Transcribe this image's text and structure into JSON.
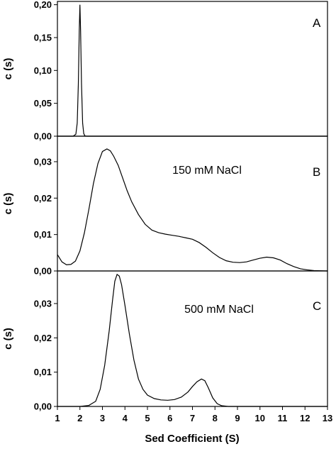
{
  "chart_data": {
    "type": "line",
    "xlabel": "Sed Coefficient (S)",
    "xlim": [
      1,
      13
    ],
    "x_ticks": [
      "1",
      "2",
      "3",
      "4",
      "5",
      "6",
      "7",
      "8",
      "9",
      "10",
      "11",
      "12",
      "13"
    ],
    "panels": [
      {
        "letter": "A",
        "annotation": "",
        "ylabel": "c (s)",
        "ylim": [
          0,
          0.205
        ],
        "y_ticks": [
          "0,00",
          "0,05",
          "0,10",
          "0,15",
          "0,20"
        ],
        "y_values": [
          0,
          0.05,
          0.1,
          0.15,
          0.2
        ],
        "series": [
          {
            "x": [
              1.0,
              1.7,
              1.82,
              1.88,
              1.93,
              1.97,
              2.0,
              2.03,
              2.07,
              2.12,
              2.17,
              2.22,
              2.3,
              13.0
            ],
            "y": [
              0,
              0,
              0.003,
              0.02,
              0.08,
              0.16,
              0.2,
              0.16,
              0.08,
              0.02,
              0.004,
              0.0005,
              0,
              0
            ]
          }
        ]
      },
      {
        "letter": "B",
        "annotation": "150 mM NaCl",
        "ylabel": "c (s)",
        "ylim": [
          0,
          0.037
        ],
        "y_ticks": [
          "0,00",
          "0,01",
          "0,02",
          "0,03"
        ],
        "y_values": [
          0,
          0.01,
          0.02,
          0.03
        ],
        "series": [
          {
            "x": [
              1.0,
              1.2,
              1.4,
              1.6,
              1.8,
              2.0,
              2.2,
              2.4,
              2.6,
              2.8,
              3.0,
              3.2,
              3.35,
              3.5,
              3.7,
              3.9,
              4.1,
              4.3,
              4.6,
              4.9,
              5.2,
              5.5,
              5.8,
              6.1,
              6.4,
              6.7,
              7.0,
              7.3,
              7.6,
              7.9,
              8.2,
              8.5,
              8.8,
              9.1,
              9.4,
              9.7,
              10.0,
              10.3,
              10.6,
              10.9,
              11.2,
              11.5,
              11.8,
              12.1,
              12.4,
              12.7,
              13.0
            ],
            "y": [
              0.0045,
              0.0025,
              0.0017,
              0.0018,
              0.0027,
              0.0055,
              0.0105,
              0.017,
              0.024,
              0.0295,
              0.0328,
              0.0335,
              0.033,
              0.0315,
              0.029,
              0.0255,
              0.022,
              0.019,
              0.0155,
              0.0128,
              0.0112,
              0.0105,
              0.0101,
              0.0098,
              0.0095,
              0.0091,
              0.0087,
              0.0078,
              0.0065,
              0.005,
              0.0037,
              0.0028,
              0.0024,
              0.0023,
              0.0025,
              0.003,
              0.0035,
              0.0038,
              0.0036,
              0.003,
              0.002,
              0.0012,
              0.0006,
              0.0003,
              0.0001,
              5e-05,
              0
            ]
          }
        ]
      },
      {
        "letter": "C",
        "annotation": "500 mM NaCl",
        "ylabel": "c (s)",
        "ylim": [
          0,
          0.0395
        ],
        "y_ticks": [
          "0,00",
          "0,01",
          "0,02",
          "0,03"
        ],
        "y_values": [
          0,
          0.01,
          0.02,
          0.03
        ],
        "series": [
          {
            "x": [
              1.0,
              2.0,
              2.4,
              2.7,
              2.9,
              3.1,
              3.3,
              3.45,
              3.55,
              3.65,
              3.75,
              3.85,
              4.0,
              4.2,
              4.4,
              4.6,
              4.8,
              5.0,
              5.3,
              5.6,
              5.9,
              6.2,
              6.5,
              6.8,
              7.0,
              7.2,
              7.4,
              7.55,
              7.7,
              7.9,
              8.1,
              8.3,
              8.6,
              13.0
            ],
            "y": [
              0,
              0,
              0.0003,
              0.0015,
              0.005,
              0.012,
              0.022,
              0.031,
              0.0365,
              0.0385,
              0.038,
              0.0355,
              0.0295,
              0.021,
              0.0135,
              0.008,
              0.005,
              0.0033,
              0.0023,
              0.0019,
              0.0018,
              0.002,
              0.0027,
              0.0042,
              0.0058,
              0.0072,
              0.008,
              0.0075,
              0.0055,
              0.0025,
              0.0008,
              0.0002,
              0,
              0
            ]
          }
        ]
      }
    ]
  }
}
